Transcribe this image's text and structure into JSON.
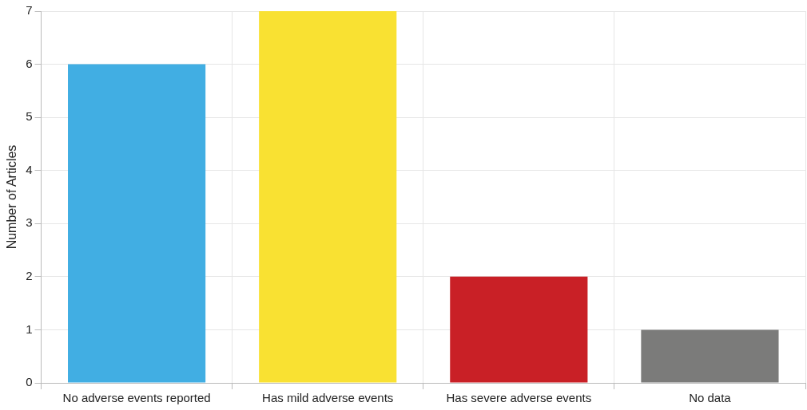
{
  "chart_data": {
    "type": "bar",
    "ylabel": "Number of Articles",
    "categories": [
      "No adverse events reported",
      "Has mild adverse events",
      "Has severe adverse events",
      "No data"
    ],
    "values": [
      6,
      7,
      2,
      1
    ],
    "colors": [
      "#41aee3",
      "#f9e132",
      "#c92026",
      "#7b7b7a"
    ],
    "ylim": [
      0,
      7
    ],
    "yticks": [
      0,
      1,
      2,
      3,
      4,
      5,
      6,
      7
    ],
    "grid": true,
    "legend": false
  }
}
